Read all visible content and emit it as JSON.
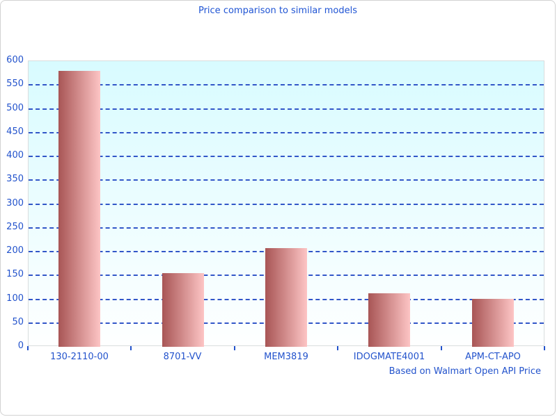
{
  "chart_data": {
    "type": "bar",
    "title": "Price comparison to similar models",
    "categories": [
      "130-2110-00",
      "8701-VV",
      "MEM3819",
      "IDOGMATE4001",
      "APM-CT-APO"
    ],
    "values": [
      580,
      155,
      207,
      112,
      101
    ],
    "xlabel": "",
    "ylabel": "",
    "ylim": [
      0,
      600
    ],
    "yticks": [
      0,
      50,
      100,
      150,
      200,
      250,
      300,
      350,
      400,
      450,
      500,
      550,
      600
    ],
    "grid": "horizontal-dashed",
    "legend": "none",
    "annotation": "Based on Walmart Open API Price",
    "colors": {
      "title_text": "#1f54d4",
      "axis_text": "#2353cc",
      "gridline": "#3156c8",
      "tick": "#2353cc",
      "bar_gradient_left": "#a85555",
      "bar_gradient_right": "#fdc5c5",
      "plot_bg_top": "#d8fbff",
      "plot_bg_bottom": "#feffff",
      "plot_border": "#d9dddd",
      "frame_border": "#d2d2d2"
    }
  }
}
